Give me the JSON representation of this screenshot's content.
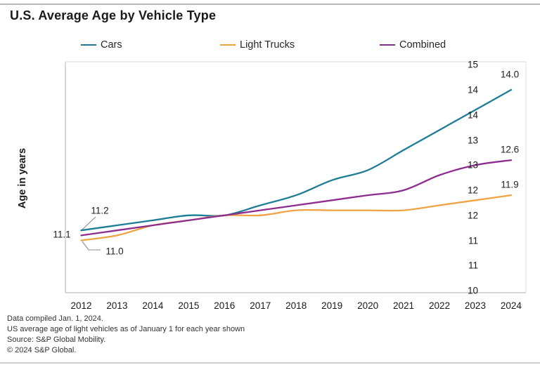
{
  "page": {
    "title": "U.S. Average Age by Vehicle Type"
  },
  "legend": [
    {
      "label": "Cars",
      "color": "#1D7C96"
    },
    {
      "label": "Light Trucks",
      "color": "#F0A343"
    },
    {
      "label": "Combined",
      "color": "#8E2D90"
    }
  ],
  "y_axis": {
    "title": "Age in years",
    "tick_labels": [
      "15",
      "14",
      "14",
      "13",
      "13",
      "12",
      "12",
      "11",
      "11",
      "10"
    ],
    "tick_values": [
      14.5,
      14.0,
      13.5,
      13.0,
      12.5,
      12.0,
      11.5,
      11.0,
      10.5,
      10.0
    ]
  },
  "chart_data": {
    "type": "line",
    "title": "U.S. Average Age by Vehicle Type",
    "xlabel": "",
    "ylabel": "Age in years",
    "x": [
      2012,
      2013,
      2014,
      2015,
      2016,
      2017,
      2018,
      2019,
      2020,
      2021,
      2022,
      2023,
      2024
    ],
    "series": [
      {
        "name": "Cars",
        "color": "#1D7C96",
        "values": [
          11.2,
          11.3,
          11.4,
          11.5,
          11.5,
          11.7,
          11.9,
          12.2,
          12.4,
          12.8,
          13.2,
          13.6,
          14.0
        ]
      },
      {
        "name": "Light Trucks",
        "color": "#F0A343",
        "values": [
          11.0,
          11.1,
          11.3,
          11.4,
          11.5,
          11.5,
          11.6,
          11.6,
          11.6,
          11.6,
          11.7,
          11.8,
          11.9
        ]
      },
      {
        "name": "Combined",
        "color": "#8E2D90",
        "values": [
          11.1,
          11.2,
          11.3,
          11.4,
          11.5,
          11.6,
          11.7,
          11.8,
          11.9,
          12.0,
          12.3,
          12.5,
          12.6
        ]
      }
    ],
    "ylim": [
      10,
      15
    ],
    "ytick_step": 0.5,
    "grid": false,
    "legend_position": "top",
    "annotations": {
      "cars_start": "11.2",
      "combined_start": "11.1",
      "trucks_start": "11.0",
      "cars_end": "14.0",
      "combined_end": "12.6",
      "trucks_end": "11.9"
    }
  },
  "footnotes": {
    "line1": "Data compiled Jan. 1, 2024.",
    "line2": "US average age of light vehicles as of January 1 for each year shown",
    "line3": "Source: S&P Global Mobility.",
    "line4": "© 2024 S&P Global."
  }
}
